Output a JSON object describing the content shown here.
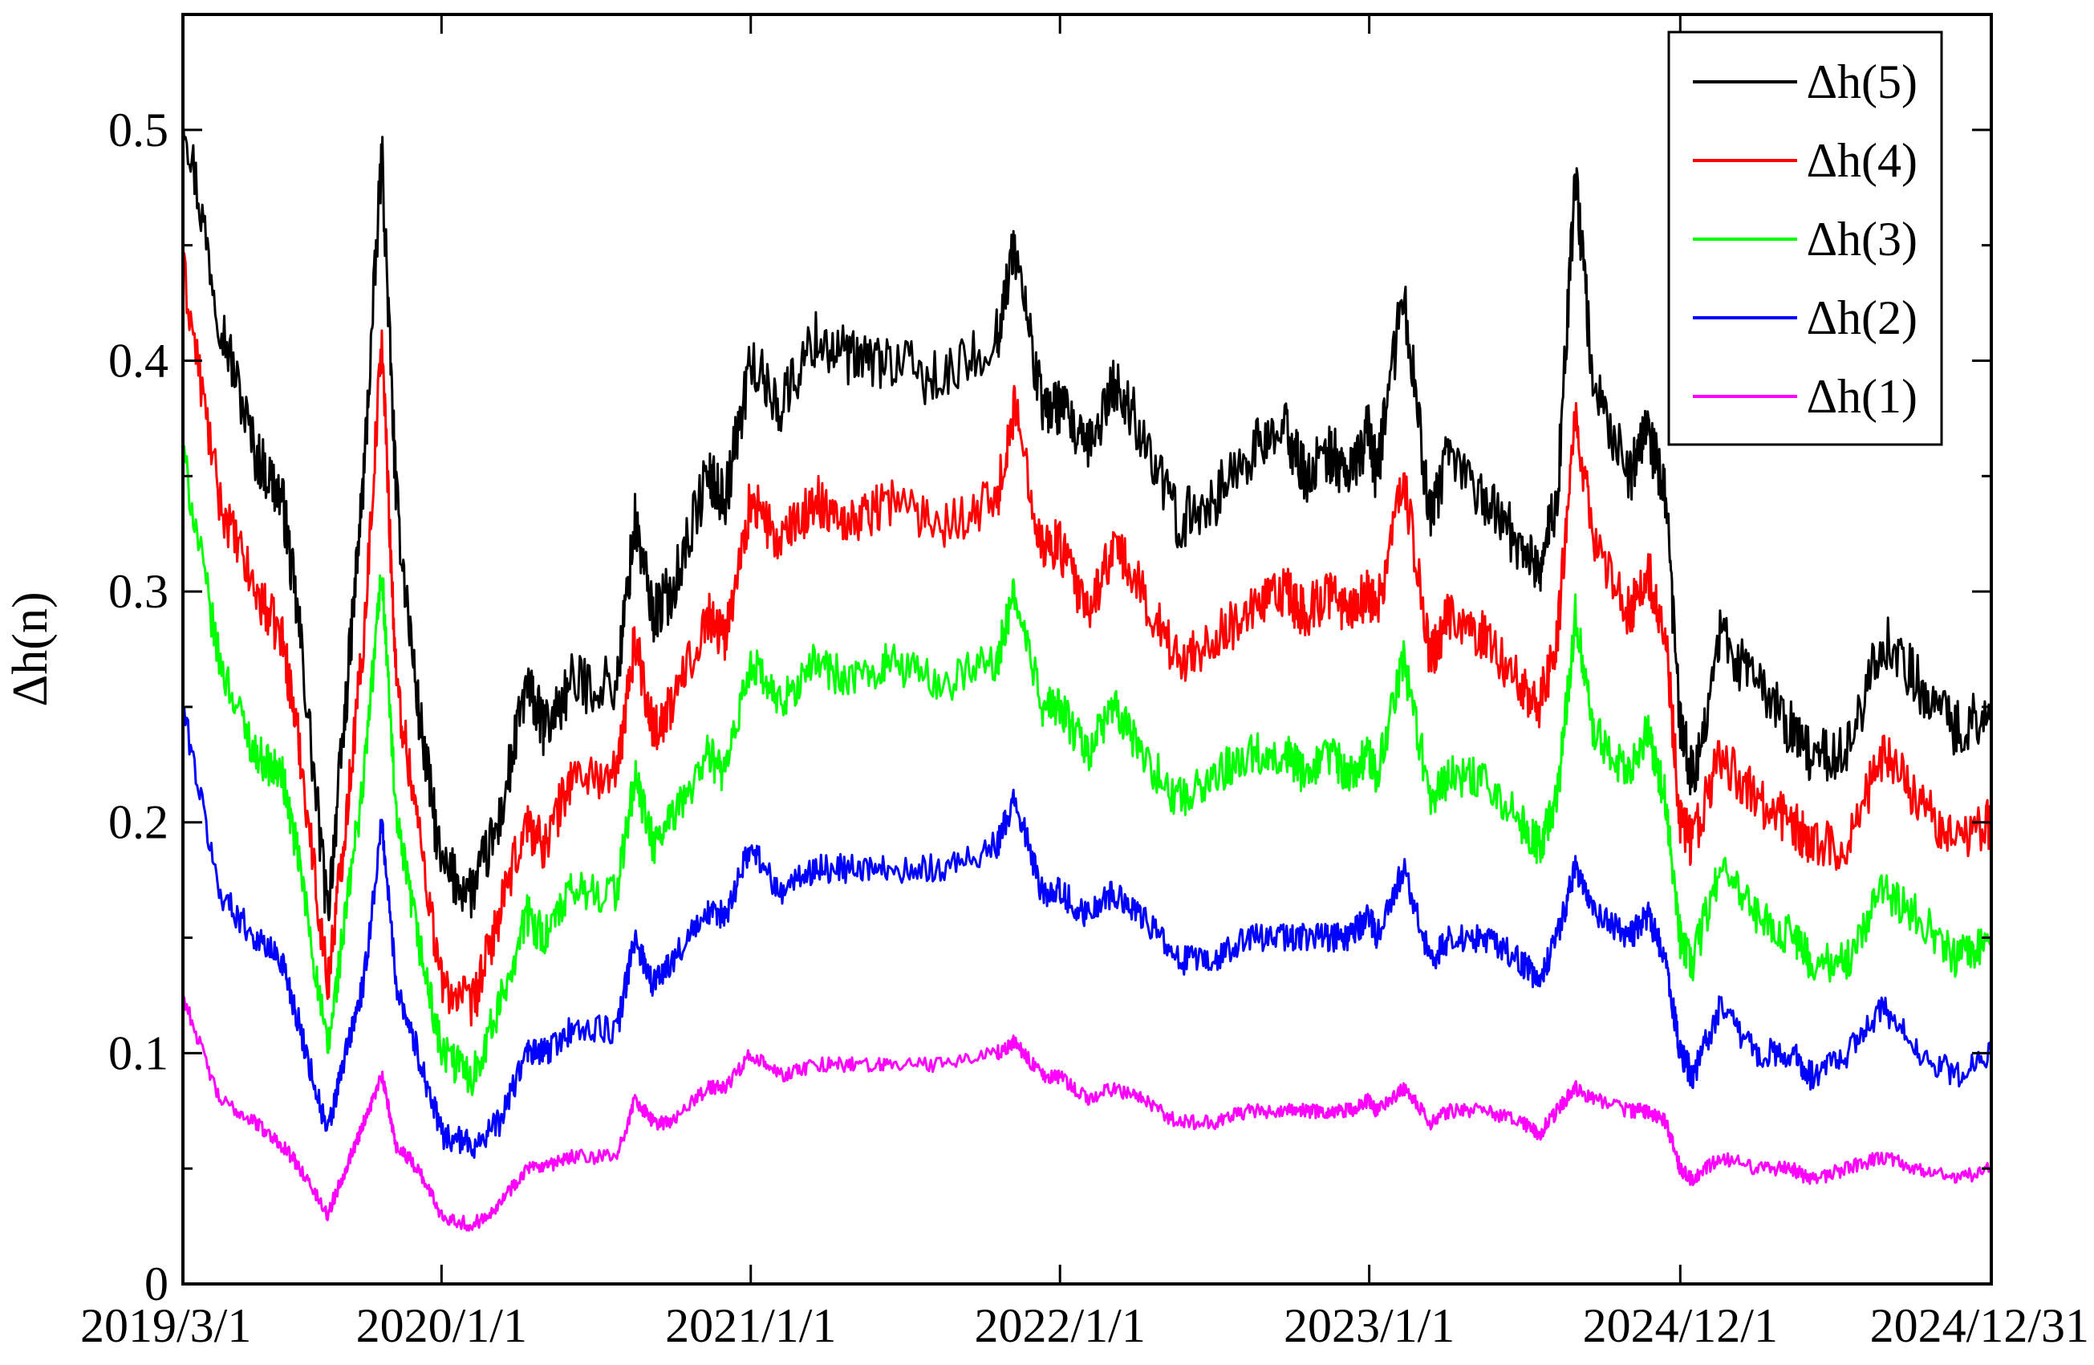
{
  "chart_data": {
    "type": "line",
    "title": "",
    "xlabel": "",
    "ylabel": "Δh(n)",
    "ylim": [
      0,
      0.55
    ],
    "xlim": [
      0,
      1
    ],
    "x_tick_positions": [
      0,
      0.143,
      0.314,
      0.485,
      0.656,
      0.828,
      1.0
    ],
    "x_tick_labels": [
      "2019/3/1",
      "2020/1/1",
      "2021/1/1",
      "2022/1/1",
      "2023/1/1",
      "2024/12/1",
      "2024/12/31"
    ],
    "y_ticks": [
      0,
      0.1,
      0.2,
      0.3,
      0.4,
      0.5
    ],
    "y_tick_labels": [
      "0",
      "0.1",
      "0.2",
      "0.3",
      "0.4",
      "0.5"
    ],
    "grid": false,
    "legend": {
      "placement": "top-right"
    },
    "x": [
      0.0,
      0.02,
      0.04,
      0.055,
      0.065,
      0.08,
      0.09,
      0.1,
      0.11,
      0.118,
      0.13,
      0.143,
      0.16,
      0.175,
      0.19,
      0.2,
      0.215,
      0.24,
      0.25,
      0.26,
      0.27,
      0.29,
      0.3,
      0.314,
      0.33,
      0.35,
      0.37,
      0.39,
      0.42,
      0.45,
      0.46,
      0.475,
      0.485,
      0.5,
      0.515,
      0.53,
      0.55,
      0.57,
      0.59,
      0.61,
      0.62,
      0.635,
      0.645,
      0.656,
      0.66,
      0.675,
      0.69,
      0.7,
      0.72,
      0.74,
      0.75,
      0.76,
      0.77,
      0.78,
      0.8,
      0.81,
      0.82,
      0.828,
      0.835,
      0.85,
      0.87,
      0.89,
      0.9,
      0.92,
      0.94,
      0.96,
      0.98,
      1.0
    ],
    "series": [
      {
        "name": "Δh(5)",
        "color": "#000000",
        "values": [
          0.51,
          0.42,
          0.36,
          0.34,
          0.28,
          0.16,
          0.25,
          0.35,
          0.49,
          0.34,
          0.25,
          0.18,
          0.17,
          0.2,
          0.26,
          0.24,
          0.26,
          0.26,
          0.33,
          0.29,
          0.3,
          0.35,
          0.34,
          0.4,
          0.38,
          0.41,
          0.4,
          0.4,
          0.39,
          0.41,
          0.45,
          0.38,
          0.38,
          0.36,
          0.39,
          0.37,
          0.33,
          0.34,
          0.36,
          0.37,
          0.35,
          0.36,
          0.35,
          0.37,
          0.35,
          0.43,
          0.33,
          0.36,
          0.34,
          0.32,
          0.31,
          0.34,
          0.48,
          0.39,
          0.35,
          0.37,
          0.34,
          0.24,
          0.22,
          0.28,
          0.26,
          0.24,
          0.23,
          0.23,
          0.28,
          0.26,
          0.24,
          0.25
        ]
      },
      {
        "name": "Δh(4)",
        "color": "#ff0000",
        "values": [
          0.44,
          0.34,
          0.3,
          0.28,
          0.23,
          0.13,
          0.2,
          0.28,
          0.41,
          0.26,
          0.2,
          0.13,
          0.12,
          0.16,
          0.2,
          0.19,
          0.22,
          0.22,
          0.28,
          0.24,
          0.25,
          0.29,
          0.28,
          0.34,
          0.32,
          0.34,
          0.33,
          0.34,
          0.33,
          0.34,
          0.38,
          0.32,
          0.32,
          0.29,
          0.32,
          0.3,
          0.27,
          0.28,
          0.29,
          0.3,
          0.29,
          0.3,
          0.29,
          0.3,
          0.29,
          0.35,
          0.27,
          0.29,
          0.28,
          0.26,
          0.25,
          0.28,
          0.38,
          0.32,
          0.29,
          0.31,
          0.28,
          0.2,
          0.19,
          0.23,
          0.21,
          0.2,
          0.19,
          0.19,
          0.23,
          0.21,
          0.19,
          0.2
        ]
      },
      {
        "name": "Δh(3)",
        "color": "#00ff00",
        "values": [
          0.36,
          0.27,
          0.23,
          0.22,
          0.18,
          0.1,
          0.16,
          0.22,
          0.31,
          0.2,
          0.15,
          0.1,
          0.09,
          0.12,
          0.16,
          0.15,
          0.17,
          0.17,
          0.22,
          0.19,
          0.2,
          0.23,
          0.22,
          0.27,
          0.25,
          0.27,
          0.26,
          0.27,
          0.26,
          0.27,
          0.3,
          0.25,
          0.25,
          0.23,
          0.25,
          0.23,
          0.21,
          0.22,
          0.23,
          0.23,
          0.22,
          0.23,
          0.22,
          0.23,
          0.22,
          0.27,
          0.21,
          0.22,
          0.22,
          0.2,
          0.19,
          0.21,
          0.29,
          0.24,
          0.22,
          0.24,
          0.21,
          0.15,
          0.14,
          0.18,
          0.16,
          0.15,
          0.14,
          0.14,
          0.17,
          0.16,
          0.14,
          0.15
        ]
      },
      {
        "name": "Δh(2)",
        "color": "#0000ff",
        "values": [
          0.25,
          0.17,
          0.15,
          0.14,
          0.11,
          0.065,
          0.1,
          0.13,
          0.2,
          0.13,
          0.1,
          0.065,
          0.06,
          0.07,
          0.1,
          0.1,
          0.11,
          0.11,
          0.15,
          0.13,
          0.14,
          0.16,
          0.16,
          0.19,
          0.17,
          0.18,
          0.18,
          0.18,
          0.18,
          0.19,
          0.21,
          0.17,
          0.17,
          0.16,
          0.17,
          0.16,
          0.14,
          0.14,
          0.15,
          0.15,
          0.15,
          0.15,
          0.15,
          0.16,
          0.15,
          0.18,
          0.14,
          0.15,
          0.15,
          0.14,
          0.13,
          0.15,
          0.18,
          0.16,
          0.15,
          0.16,
          0.14,
          0.1,
          0.09,
          0.12,
          0.1,
          0.1,
          0.09,
          0.1,
          0.12,
          0.1,
          0.09,
          0.1
        ]
      },
      {
        "name": "Δh(1)",
        "color": "#ff00ff",
        "values": [
          0.125,
          0.08,
          0.07,
          0.06,
          0.05,
          0.03,
          0.05,
          0.07,
          0.09,
          0.06,
          0.05,
          0.03,
          0.025,
          0.035,
          0.05,
          0.05,
          0.055,
          0.055,
          0.08,
          0.07,
          0.07,
          0.085,
          0.085,
          0.1,
          0.09,
          0.095,
          0.095,
          0.095,
          0.095,
          0.1,
          0.105,
          0.09,
          0.09,
          0.08,
          0.085,
          0.08,
          0.07,
          0.07,
          0.075,
          0.075,
          0.075,
          0.075,
          0.075,
          0.08,
          0.075,
          0.085,
          0.07,
          0.075,
          0.075,
          0.07,
          0.065,
          0.075,
          0.085,
          0.08,
          0.075,
          0.075,
          0.07,
          0.05,
          0.045,
          0.055,
          0.05,
          0.05,
          0.045,
          0.05,
          0.055,
          0.05,
          0.045,
          0.05
        ]
      }
    ]
  }
}
